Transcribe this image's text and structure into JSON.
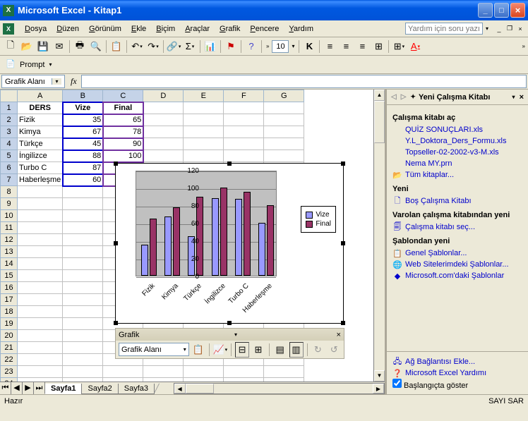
{
  "window": {
    "title": "Microsoft Excel - Kitap1"
  },
  "menu": [
    "Dosya",
    "Düzen",
    "Görünüm",
    "Ekle",
    "Biçim",
    "Araçlar",
    "Grafik",
    "Pencere",
    "Yardım"
  ],
  "help_placeholder": "Yardım için soru yazın",
  "prompt_label": "Prompt",
  "namebox": "Grafik Alanı",
  "fontsize": "10",
  "columns": [
    "A",
    "B",
    "C",
    "D",
    "E",
    "F",
    "G"
  ],
  "rows_visible": 24,
  "data": {
    "A1": "DERS",
    "B1": "Vize",
    "C1": "Final",
    "A2": "Fizik",
    "B2": "35",
    "C2": "65",
    "A3": "Kimya",
    "B3": "67",
    "C3": "78",
    "A4": "Türkçe",
    "B4": "45",
    "C4": "90",
    "A5": "İngilizce",
    "B5": "88",
    "C5": "100",
    "A6": "Turbo C",
    "B6": "87",
    "C6": "95",
    "A7": "Haberleşme",
    "B7": "60"
  },
  "chart": {
    "type": "bar",
    "categories": [
      "Fizik",
      "Kimya",
      "Türkçe",
      "İngilizce",
      "Turbo C",
      "Haberleşme"
    ],
    "series": [
      {
        "name": "Vize",
        "color": "#9999ff",
        "values": [
          35,
          67,
          45,
          88,
          87,
          60
        ]
      },
      {
        "name": "Final",
        "color": "#993366",
        "values": [
          65,
          78,
          90,
          100,
          95,
          80
        ]
      }
    ],
    "ylim": [
      0,
      120
    ],
    "ytick_step": 20,
    "plot_bg": "#c0c0c0",
    "grid_color": "#808080",
    "legend_pos": "right"
  },
  "chart_toolbar": {
    "title": "Grafik",
    "combo": "Grafik Alanı"
  },
  "sheets": [
    "Sayfa1",
    "Sayfa2",
    "Sayfa3"
  ],
  "active_sheet": 0,
  "taskpane": {
    "title": "Yeni Çalışma Kitabı",
    "sections": [
      {
        "title": "Çalışma kitabı aç",
        "items": [
          {
            "label": "QUİZ SONUÇLARI.xls",
            "link": true
          },
          {
            "label": "Y.L_Doktora_Ders_Formu.xls",
            "link": true
          },
          {
            "label": "Topseller-02-2002-v3-M.xls",
            "link": true
          },
          {
            "label": "Nema MY.prn",
            "link": true
          },
          {
            "label": "Tüm kitaplar...",
            "link": true,
            "icon": "folder"
          }
        ]
      },
      {
        "title": "Yeni",
        "items": [
          {
            "label": "Boş Çalışma Kitabı",
            "link": true,
            "icon": "doc"
          }
        ]
      },
      {
        "title": "Varolan çalışma kitabından yeni",
        "items": [
          {
            "label": "Çalışma kitabı seç...",
            "link": true,
            "icon": "docsel"
          }
        ]
      },
      {
        "title": "Şablondan yeni",
        "items": [
          {
            "label": "Genel Şablonlar...",
            "link": true,
            "icon": "tpl"
          },
          {
            "label": "Web Sitelerimdeki Şablonlar...",
            "link": true,
            "icon": "web"
          },
          {
            "label": "Microsoft.com'daki Şablonlar",
            "link": true,
            "icon": "ms"
          }
        ]
      }
    ],
    "footer": [
      {
        "label": "Ağ Bağlantısı Ekle...",
        "link": true,
        "icon": "net"
      },
      {
        "label": "Microsoft Excel Yardımı",
        "link": true,
        "icon": "help"
      },
      {
        "label": "Başlangıçta göster",
        "checkbox": true,
        "checked": true
      }
    ]
  },
  "status": {
    "left": "Hazır",
    "right": "SAYI  SAR"
  }
}
